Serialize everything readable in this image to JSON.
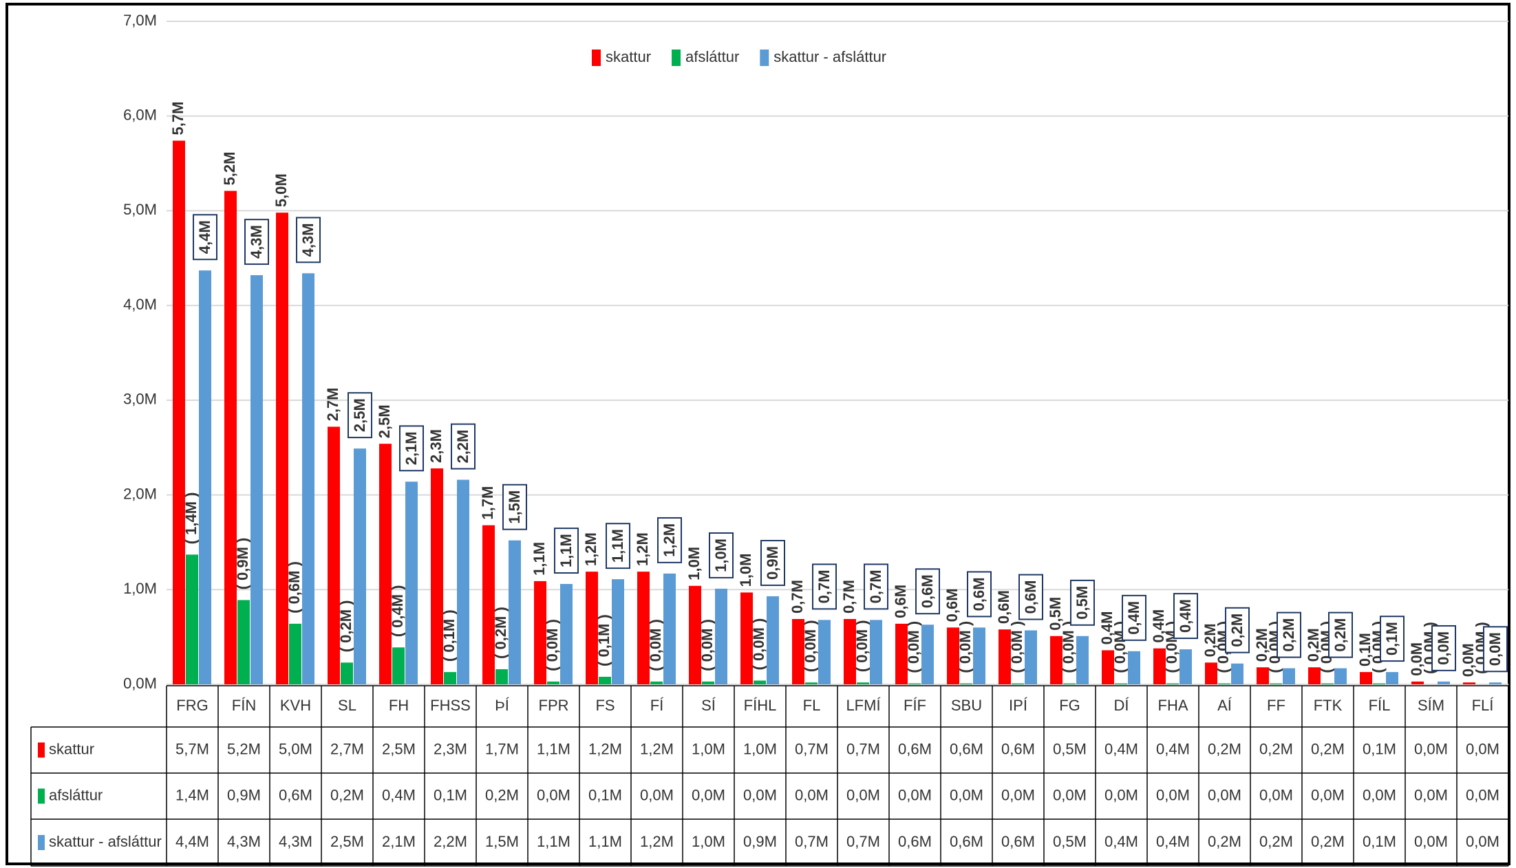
{
  "chart_data": {
    "type": "bar",
    "categories": [
      "FRG",
      "FÍN",
      "KVH",
      "SL",
      "FH",
      "FHSS",
      "ÞÍ",
      "FPR",
      "FS",
      "FÍ",
      "SÍ",
      "FÍHL",
      "FL",
      "LFMÍ",
      "FÍF",
      "SBU",
      "IPÍ",
      "FG",
      "DÍ",
      "FHA",
      "AÍ",
      "FF",
      "FTK",
      "FÍL",
      "SÍM",
      "FLÍ"
    ],
    "series": [
      {
        "name": "skattur",
        "color": "#ff0000",
        "values": [
          5740000,
          5210000,
          4980000,
          2720000,
          2540000,
          2280000,
          1680000,
          1090000,
          1190000,
          1190000,
          1040000,
          970000,
          690000,
          690000,
          640000,
          600000,
          580000,
          510000,
          360000,
          380000,
          230000,
          180000,
          180000,
          130000,
          30000,
          20000
        ],
        "value_labels": [
          "5,7M",
          "5,2M",
          "5,0M",
          "2,7M",
          "2,5M",
          "2,3M",
          "1,7M",
          "1,1M",
          "1,2M",
          "1,2M",
          "1,0M",
          "1,0M",
          "0,7M",
          "0,7M",
          "0,6M",
          "0,6M",
          "0,6M",
          "0,5M",
          "0,4M",
          "0,4M",
          "0,2M",
          "0,2M",
          "0,2M",
          "0,1M",
          "0,0M",
          "0,0M"
        ]
      },
      {
        "name": "afsláttur",
        "color": "#00b050",
        "values": [
          1370000,
          890000,
          640000,
          230000,
          390000,
          130000,
          160000,
          30000,
          80000,
          30000,
          30000,
          40000,
          20000,
          20000,
          10000,
          10000,
          10000,
          10000,
          10000,
          10000,
          10000,
          10000,
          10000,
          10000,
          0,
          0
        ],
        "value_labels": [
          "( 1,4M )",
          "( 0,9M )",
          "( 0,6M )",
          "( 0,2M )",
          "( 0,4M )",
          "( 0,1M )",
          "( 0,2M )",
          "( 0,0M )",
          "( 0,1M )",
          "( 0,0M )",
          "( 0,0M )",
          "( 0,0M )",
          "( 0,0M )",
          "( 0,0M )",
          "( 0,0M )",
          "( 0,0M )",
          "( 0,0M )",
          "( 0,0M )",
          "( 0,0M )",
          "( 0,0M )",
          "( 0,0M )",
          "( 0,0M )",
          "( 0,0M )",
          "( 0,0M )",
          "( 0,0M )",
          "( 0,0M )"
        ],
        "table_labels": [
          "1,4M",
          "0,9M",
          "0,6M",
          "0,2M",
          "0,4M",
          "0,1M",
          "0,2M",
          "0,0M",
          "0,1M",
          "0,0M",
          "0,0M",
          "0,0M",
          "0,0M",
          "0,0M",
          "0,0M",
          "0,0M",
          "0,0M",
          "0,0M",
          "0,0M",
          "0,0M",
          "0,0M",
          "0,0M",
          "0,0M",
          "0,0M",
          "0,0M",
          "0,0M"
        ]
      },
      {
        "name": "skattur - afsláttur",
        "color": "#5b9bd5",
        "values": [
          4370000,
          4320000,
          4340000,
          2490000,
          2140000,
          2160000,
          1520000,
          1060000,
          1110000,
          1170000,
          1010000,
          930000,
          680000,
          680000,
          630000,
          600000,
          570000,
          510000,
          350000,
          370000,
          220000,
          170000,
          170000,
          130000,
          30000,
          20000
        ],
        "value_labels": [
          "4,4M",
          "4,3M",
          "4,3M",
          "2,5M",
          "2,1M",
          "2,2M",
          "1,5M",
          "1,1M",
          "1,1M",
          "1,2M",
          "1,0M",
          "0,9M",
          "0,7M",
          "0,7M",
          "0,6M",
          "0,6M",
          "0,6M",
          "0,5M",
          "0,4M",
          "0,4M",
          "0,2M",
          "0,2M",
          "0,2M",
          "0,1M",
          "0,0M",
          "0,0M"
        ]
      }
    ],
    "ylim": [
      0,
      7000000
    ],
    "yticks": [
      {
        "value": 0,
        "label": "0,0M"
      },
      {
        "value": 1000000,
        "label": "1,0M"
      },
      {
        "value": 2000000,
        "label": "2,0M"
      },
      {
        "value": 3000000,
        "label": "3,0M"
      },
      {
        "value": 4000000,
        "label": "4,0M"
      },
      {
        "value": 5000000,
        "label": "5,0M"
      },
      {
        "value": 6000000,
        "label": "6,0M"
      },
      {
        "value": 7000000,
        "label": "7,0M"
      }
    ],
    "grid": true,
    "legend": "top"
  }
}
